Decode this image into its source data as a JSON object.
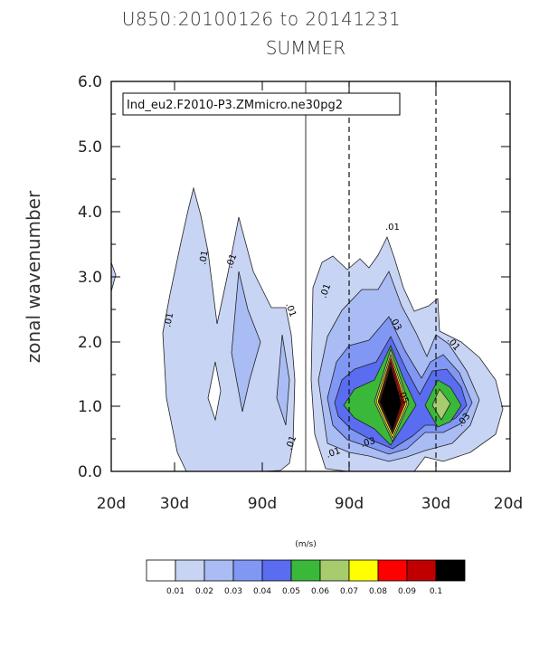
{
  "title_line1": "U850:20100126 to 20141231",
  "title_line2": "SUMMER",
  "case_label": "Ind_eu2.F2010-P3.ZMmicro.ne30pg2",
  "units_label": "(m/s)",
  "chart_data": {
    "type": "contour",
    "ylabel": "zonal wavenumber",
    "ylim": [
      0,
      6
    ],
    "y_ticks": [
      "0.0",
      "1.0",
      "2.0",
      "3.0",
      "4.0",
      "5.0",
      "6.0"
    ],
    "x_ticks": [
      "20d",
      "30d",
      "90d",
      "90d",
      "30d",
      "20d"
    ],
    "contour_levels": [
      0.01,
      0.02,
      0.03,
      0.04,
      0.05,
      0.06,
      0.07,
      0.08,
      0.09,
      0.1
    ],
    "level_colors": [
      "#ffffff",
      "#c8d4f4",
      "#a9bcf4",
      "#8197f4",
      "#5a6cf0",
      "#3ab83a",
      "#a7cc6e",
      "#ffff00",
      "#ff0000",
      "#c00000",
      "#000000"
    ],
    "contour_labels": [
      ".01",
      ".01",
      ".01",
      ".01",
      ".01",
      ".01",
      ".01",
      ".01",
      ".03",
      ".05",
      ".03",
      ".01",
      ".03"
    ],
    "colorbar_labels": [
      "0.01",
      "0.02",
      "0.03",
      "0.04",
      "0.05",
      "0.06",
      "0.07",
      "0.08",
      "0.09",
      "0.1"
    ]
  }
}
